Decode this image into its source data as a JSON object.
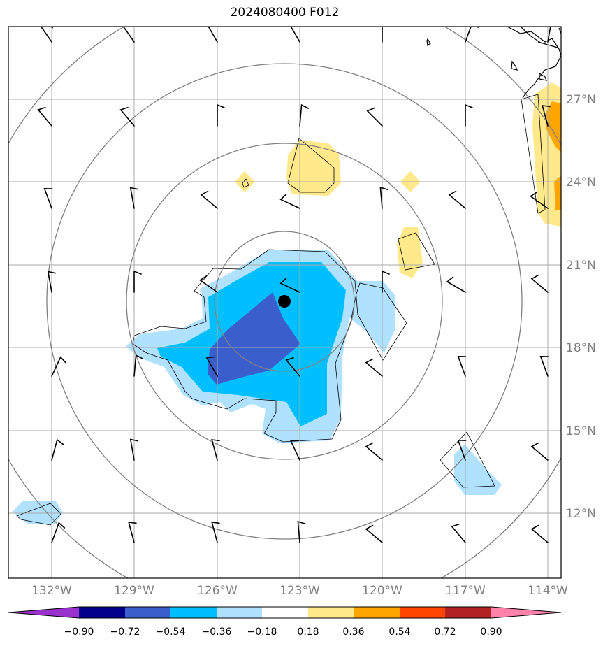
{
  "title": "2024080400 F012",
  "map": {
    "lon_labels": [
      "132°W",
      "129°W",
      "126°W",
      "123°W",
      "120°W",
      "117°W",
      "114°W"
    ],
    "lat_labels": [
      "27°N",
      "24°N",
      "21°N",
      "18°N",
      "15°N",
      "12°N"
    ],
    "storm_center": {
      "lon": -123.55,
      "lat": 19.65
    }
  },
  "colorbar": {
    "labels": [
      "−0.90",
      "−0.72",
      "−0.54",
      "−0.36",
      "−0.18",
      "0.18",
      "0.36",
      "0.54",
      "0.72",
      "0.90"
    ],
    "colors": [
      "#9932cc",
      "#00008b",
      "#3a5fcd",
      "#00bfff",
      "#b0e2ff",
      "#ffffff",
      "#ffe98b",
      "#ffa500",
      "#ff4500",
      "#b22222",
      "#ff82ab"
    ]
  }
}
